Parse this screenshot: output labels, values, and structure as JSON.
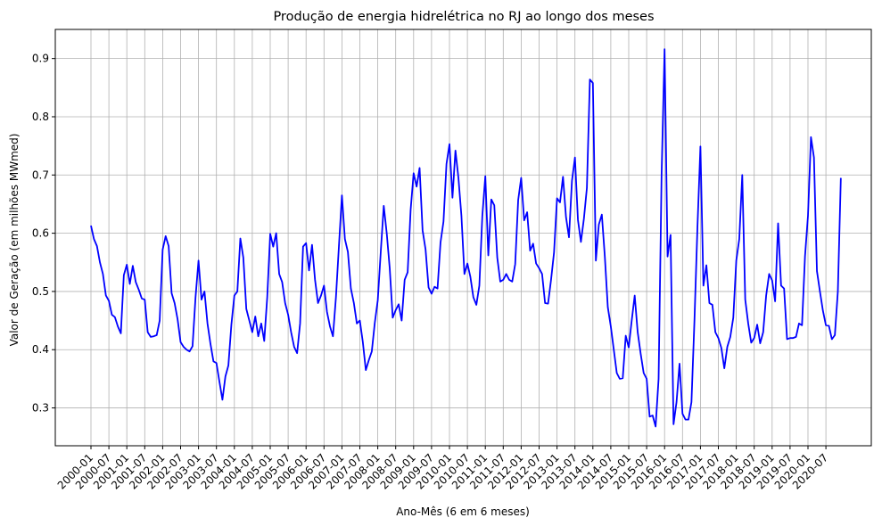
{
  "chart_data": {
    "type": "line",
    "title": "Produção de energia hidrelétrica no RJ ao longo dos meses",
    "xlabel": "Ano-Mês (6 em 6 meses)",
    "ylabel": "Valor de Geração (em milhões MWmed)",
    "ylim": [
      0.235,
      0.95
    ],
    "yticks": [
      0.3,
      0.4,
      0.5,
      0.6,
      0.7,
      0.8,
      0.9
    ],
    "xticks": [
      "2000-01",
      "2000-07",
      "2001-01",
      "2001-07",
      "2002-01",
      "2002-07",
      "2003-01",
      "2003-07",
      "2004-01",
      "2004-07",
      "2005-01",
      "2005-07",
      "2006-01",
      "2006-07",
      "2007-01",
      "2007-07",
      "2008-01",
      "2008-07",
      "2009-01",
      "2009-07",
      "2010-01",
      "2010-07",
      "2011-01",
      "2011-07",
      "2012-01",
      "2012-07",
      "2013-01",
      "2013-07",
      "2014-01",
      "2014-07",
      "2015-01",
      "2015-07",
      "2016-01",
      "2016-07",
      "2017-01",
      "2017-07",
      "2018-01",
      "2018-07",
      "2019-01",
      "2019-07",
      "2020-01",
      "2020-07"
    ],
    "grid": true,
    "line_color": "#0000ff",
    "x_start": "2000-01",
    "series": [
      {
        "values": [
          0.613,
          0.59,
          0.578,
          0.55,
          0.53,
          0.493,
          0.484,
          0.46,
          0.456,
          0.44,
          0.428,
          0.528,
          0.546,
          0.513,
          0.544,
          0.516,
          0.503,
          0.488,
          0.486,
          0.43,
          0.422,
          0.423,
          0.425,
          0.45,
          0.572,
          0.595,
          0.578,
          0.497,
          0.48,
          0.452,
          0.413,
          0.405,
          0.4,
          0.397,
          0.406,
          0.49,
          0.553,
          0.486,
          0.5,
          0.445,
          0.41,
          0.38,
          0.377,
          0.345,
          0.314,
          0.354,
          0.373,
          0.443,
          0.493,
          0.5,
          0.591,
          0.558,
          0.47,
          0.45,
          0.43,
          0.457,
          0.423,
          0.445,
          0.415,
          0.49,
          0.599,
          0.577,
          0.6,
          0.53,
          0.516,
          0.48,
          0.46,
          0.43,
          0.405,
          0.394,
          0.445,
          0.577,
          0.583,
          0.536,
          0.58,
          0.52,
          0.48,
          0.493,
          0.51,
          0.465,
          0.44,
          0.423,
          0.49,
          0.578,
          0.665,
          0.59,
          0.568,
          0.505,
          0.48,
          0.445,
          0.45,
          0.413,
          0.365,
          0.382,
          0.397,
          0.446,
          0.485,
          0.568,
          0.647,
          0.6,
          0.54,
          0.455,
          0.468,
          0.478,
          0.45,
          0.52,
          0.533,
          0.64,
          0.703,
          0.68,
          0.712,
          0.605,
          0.572,
          0.507,
          0.496,
          0.508,
          0.505,
          0.584,
          0.62,
          0.719,
          0.753,
          0.661,
          0.742,
          0.695,
          0.63,
          0.53,
          0.548,
          0.525,
          0.49,
          0.477,
          0.51,
          0.63,
          0.698,
          0.562,
          0.658,
          0.648,
          0.558,
          0.517,
          0.52,
          0.53,
          0.52,
          0.517,
          0.547,
          0.657,
          0.695,
          0.622,
          0.636,
          0.57,
          0.582,
          0.548,
          0.54,
          0.53,
          0.48,
          0.479,
          0.52,
          0.567,
          0.66,
          0.653,
          0.697,
          0.628,
          0.593,
          0.69,
          0.73,
          0.623,
          0.585,
          0.625,
          0.678,
          0.864,
          0.858,
          0.553,
          0.615,
          0.632,
          0.56,
          0.473,
          0.44,
          0.4,
          0.36,
          0.35,
          0.351,
          0.424,
          0.404,
          0.45,
          0.493,
          0.43,
          0.393,
          0.36,
          0.35,
          0.285,
          0.287,
          0.268,
          0.35,
          0.7,
          0.916,
          0.56,
          0.597,
          0.272,
          0.31,
          0.376,
          0.29,
          0.28,
          0.28,
          0.31,
          0.45,
          0.61,
          0.749,
          0.51,
          0.545,
          0.48,
          0.477,
          0.43,
          0.42,
          0.403,
          0.368,
          0.405,
          0.422,
          0.455,
          0.553,
          0.59,
          0.7,
          0.486,
          0.445,
          0.412,
          0.42,
          0.443,
          0.411,
          0.43,
          0.493,
          0.53,
          0.519,
          0.483,
          0.617,
          0.51,
          0.505,
          0.418,
          0.42,
          0.42,
          0.422,
          0.445,
          0.442,
          0.56,
          0.63,
          0.765,
          0.73,
          0.535,
          0.5,
          0.467,
          0.442,
          0.441,
          0.418,
          0.425,
          0.5,
          0.695
        ]
      }
    ]
  }
}
